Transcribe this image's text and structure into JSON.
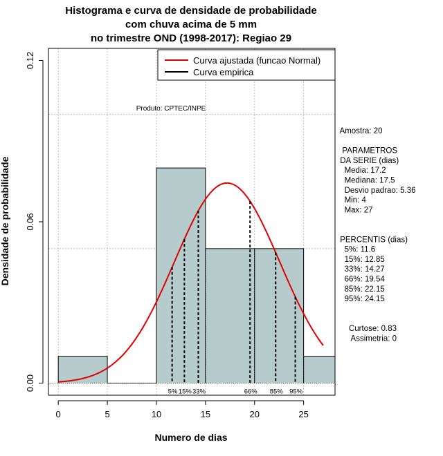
{
  "chart_data": {
    "type": "histogram",
    "title": [
      "Histograma e curva de densidade de probabilidade",
      "com chuva acima de 5 mm",
      "no trimestre OND (1998-2017): Regiao 29"
    ],
    "xlabel": "Numero de dias",
    "ylabel": "Densidade de probabilidade",
    "xlim": [
      -1,
      28.2
    ],
    "ylim": [
      -0.0045,
      0.1245
    ],
    "x_ticks": [
      0,
      5,
      10,
      15,
      20,
      25
    ],
    "y_ticks": [
      0.0,
      0.06,
      0.12
    ],
    "y_tick_labels": [
      "0.00",
      "0.06",
      "0.12"
    ],
    "bins": [
      {
        "x0": 0,
        "x1": 5,
        "density": 0.01
      },
      {
        "x0": 5,
        "x1": 10,
        "density": 0.0
      },
      {
        "x0": 10,
        "x1": 15,
        "density": 0.08
      },
      {
        "x0": 15,
        "x1": 20,
        "density": 0.05
      },
      {
        "x0": 20,
        "x1": 25,
        "density": 0.05
      },
      {
        "x0": 25,
        "x1": 30,
        "density": 0.01
      }
    ],
    "normal_curve": {
      "mean": 17.2,
      "sd": 5.36,
      "x_from": 0,
      "x_to": 27,
      "color": "#e00000"
    },
    "percentile_lines": [
      {
        "label": "5%",
        "value": 11.6
      },
      {
        "label": "15%",
        "value": 12.85
      },
      {
        "label": "33%",
        "value": 14.27
      },
      {
        "label": "66%",
        "value": 19.54
      },
      {
        "label": "85%",
        "value": 22.15
      },
      {
        "label": "95%",
        "value": 24.15
      }
    ],
    "grid_x": [
      0,
      5,
      10,
      15,
      20,
      25
    ],
    "grid_y": [
      0.0,
      0.05,
      0.1
    ],
    "legend": [
      {
        "label": "Curva ajustada (funcao Normal)",
        "color": "#e00000"
      },
      {
        "label": "Curva empirica",
        "color": "#000000"
      }
    ],
    "legend_position": "top-right",
    "bar_color": "#b6cccc",
    "credit": "Produto: CPTEC/INPE"
  },
  "stats_panel": {
    "lines": [
      " Amostra: 20",
      "",
      "  PARAMETROS",
      " DA SERIE (dias)",
      "   Media: 17.2",
      "   Mediana: 17.5",
      "   Desvio padrao: 5.36",
      "   Min: 4",
      "   Max: 27",
      "",
      "",
      " PERCENTIS (dias)",
      "   5%: 11.6",
      "   15%: 12.85",
      "   33%: 14.27",
      "   66%: 19.54",
      "   85%: 22.15",
      "   95%: 24.15",
      "",
      "",
      "     Curtose: 0.83",
      "      Assimetria: 0"
    ]
  }
}
